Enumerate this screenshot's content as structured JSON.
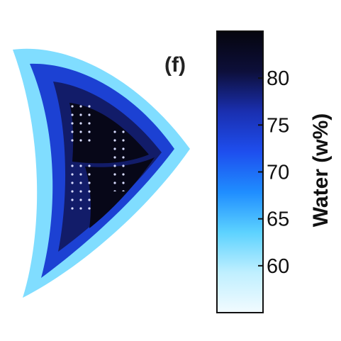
{
  "chart_data": {
    "type": "heatmap",
    "panel_label": "(f)",
    "colorbar": {
      "label": "Water (w%)",
      "range": [
        55,
        85
      ],
      "ticks": [
        60,
        65,
        70,
        75,
        80
      ],
      "tick_labels": [
        "80",
        "75",
        "70",
        "65",
        "60"
      ]
    },
    "colormap": [
      "#f2fbff",
      "#bfefff",
      "#5cd2ff",
      "#1f8dff",
      "#1e4eee",
      "#1a2fb0",
      "#0d0f3a",
      "#05050e"
    ],
    "shape": "fan-shaped tissue section",
    "water_levels": {
      "outer_rim": 62,
      "main_body": 74,
      "inner_body": 79,
      "core": 84
    }
  }
}
